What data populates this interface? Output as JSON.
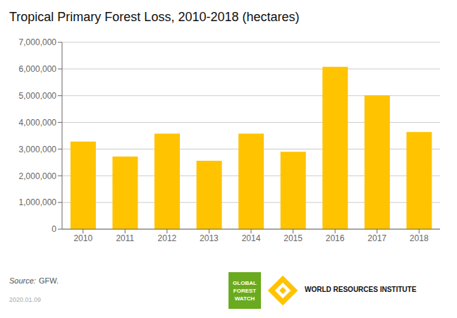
{
  "chart_data": {
    "type": "bar",
    "title": "Tropical Primary Forest Loss, 2010-2018 (hectares)",
    "categories": [
      "2010",
      "2011",
      "2012",
      "2013",
      "2014",
      "2015",
      "2016",
      "2017",
      "2018"
    ],
    "values": [
      3280000,
      2720000,
      3580000,
      2560000,
      3580000,
      2900000,
      6080000,
      5010000,
      3640000
    ],
    "color": "#FFC300",
    "ylim": [
      0,
      7000000
    ],
    "yticks": [
      0,
      {
        "value": 1000000,
        "label": "1,000,000"
      },
      {
        "value": 2000000,
        "label": "2,000,000"
      },
      {
        "value": 3000000,
        "label": "3,000,000"
      },
      {
        "value": 4000000,
        "label": "4,000,000"
      },
      {
        "value": 5000000,
        "label": "5,000,000"
      },
      {
        "value": 6000000,
        "label": "6,000,000"
      },
      {
        "value": 7000000,
        "label": "7,000,000"
      }
    ],
    "grid": true,
    "annotations": [
      "Source:",
      "GFW.",
      "2020.01.09",
      "GLOBAL",
      "FOREST",
      "WATCH",
      "WORLD RESOURCES INSTITUTE"
    ]
  }
}
